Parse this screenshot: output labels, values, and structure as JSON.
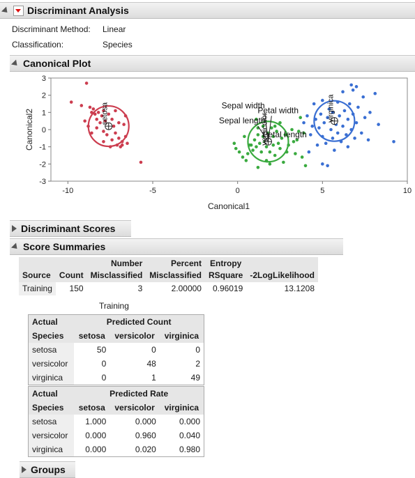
{
  "analysis": {
    "title": "Discriminant Analysis",
    "method_label": "Discriminant Method:",
    "method_value": "Linear",
    "classification_label": "Classification:",
    "classification_value": "Species"
  },
  "canonical_plot": {
    "title": "Canonical Plot",
    "chart_data": {
      "type": "scatter",
      "xlabel": "Canonical1",
      "ylabel": "Canonical2",
      "xlim": [
        -11,
        10
      ],
      "ylim": [
        -3,
        3
      ],
      "x_ticks": [
        "-10",
        "-5",
        "0",
        "5",
        "10"
      ],
      "y_ticks": [
        "3",
        "2",
        "1",
        "0",
        "-1",
        "-2",
        "-3"
      ],
      "groups": [
        {
          "name": "setosa",
          "color": "#cc3d4f",
          "center": [
            -7.6,
            0.2
          ],
          "points": [
            [
              -9.8,
              1.6
            ],
            [
              -9.2,
              1.4
            ],
            [
              -8.9,
              2.7
            ],
            [
              -8.7,
              1.3
            ],
            [
              -8.6,
              1.0
            ],
            [
              -8.5,
              1.2
            ],
            [
              -8.4,
              0.9
            ],
            [
              -8.3,
              0.6
            ],
            [
              -8.2,
              1.0
            ],
            [
              -8.1,
              0.4
            ],
            [
              -8.0,
              0.8
            ],
            [
              -7.9,
              1.1
            ],
            [
              -7.9,
              -0.1
            ],
            [
              -7.8,
              0.5
            ],
            [
              -7.7,
              0.3
            ],
            [
              -7.7,
              -0.3
            ],
            [
              -7.6,
              0.9
            ],
            [
              -7.5,
              0.1
            ],
            [
              -7.4,
              0.6
            ],
            [
              -7.4,
              -0.6
            ],
            [
              -7.3,
              0.2
            ],
            [
              -7.2,
              -0.2
            ],
            [
              -7.2,
              1.1
            ],
            [
              -7.1,
              -0.9
            ],
            [
              -7.0,
              -0.5
            ],
            [
              -7.0,
              0.4
            ],
            [
              -6.9,
              -1.0
            ],
            [
              -6.8,
              -0.7
            ],
            [
              -6.7,
              0.3
            ],
            [
              -6.6,
              -0.4
            ],
            [
              -6.6,
              0.8
            ],
            [
              -8.6,
              -0.2
            ],
            [
              -8.3,
              0.1
            ],
            [
              -7.9,
              -0.7
            ],
            [
              -7.5,
              -1.0
            ],
            [
              -6.8,
              -0.9
            ],
            [
              -6.5,
              -0.8
            ],
            [
              -5.7,
              -1.9
            ],
            [
              -9.0,
              0.5
            ],
            [
              -8.8,
              0.2
            ]
          ]
        },
        {
          "name": "versicolor",
          "color": "#3aaa3f",
          "center": [
            1.8,
            -0.7
          ],
          "points": [
            [
              -0.2,
              -0.8
            ],
            [
              -0.1,
              -1.1
            ],
            [
              0.1,
              -1.3
            ],
            [
              0.3,
              -1.6
            ],
            [
              0.5,
              -1.8
            ],
            [
              0.6,
              -1.4
            ],
            [
              0.8,
              -0.9
            ],
            [
              0.9,
              -1.2
            ],
            [
              1.0,
              -0.6
            ],
            [
              1.1,
              -1.0
            ],
            [
              1.1,
              0.6
            ],
            [
              1.2,
              -0.3
            ],
            [
              1.2,
              -2.2
            ],
            [
              1.3,
              -0.8
            ],
            [
              1.4,
              -1.3
            ],
            [
              1.5,
              -0.4
            ],
            [
              1.5,
              0.2
            ],
            [
              1.6,
              -0.7
            ],
            [
              1.7,
              -1.0
            ],
            [
              1.7,
              -1.8
            ],
            [
              1.8,
              -0.2
            ],
            [
              1.9,
              -0.6
            ],
            [
              1.9,
              -1.3
            ],
            [
              2.0,
              0.1
            ],
            [
              2.1,
              -0.9
            ],
            [
              2.1,
              -0.4
            ],
            [
              2.2,
              -1.5
            ],
            [
              2.3,
              -0.1
            ],
            [
              2.4,
              -0.8
            ],
            [
              2.5,
              -1.1
            ],
            [
              2.5,
              0.4
            ],
            [
              2.6,
              -0.5
            ],
            [
              2.7,
              -1.9
            ],
            [
              2.8,
              -0.3
            ],
            [
              3.0,
              -0.9
            ],
            [
              3.2,
              0.0
            ],
            [
              3.4,
              -1.4
            ],
            [
              3.5,
              -0.6
            ],
            [
              3.7,
              0.7
            ],
            [
              3.8,
              -1.6
            ],
            [
              3.9,
              -0.2
            ],
            [
              4.0,
              -2.1
            ],
            [
              0.4,
              -0.4
            ],
            [
              0.7,
              -0.9
            ],
            [
              2.9,
              -1.3
            ],
            [
              3.3,
              -0.7
            ],
            [
              1.9,
              -2.0
            ],
            [
              1.2,
              0.1
            ],
            [
              3.6,
              -0.1
            ],
            [
              2.2,
              0.2
            ]
          ]
        },
        {
          "name": "virginica",
          "color": "#3a6fd3",
          "center": [
            5.7,
            0.5
          ],
          "points": [
            [
              3.9,
              0.4
            ],
            [
              4.1,
              0.8
            ],
            [
              4.3,
              -0.3
            ],
            [
              4.4,
              0.2
            ],
            [
              4.5,
              1.5
            ],
            [
              4.6,
              0.6
            ],
            [
              4.7,
              -0.9
            ],
            [
              4.8,
              0.1
            ],
            [
              4.9,
              0.9
            ],
            [
              5.0,
              -0.4
            ],
            [
              5.0,
              1.7
            ],
            [
              5.1,
              0.4
            ],
            [
              5.2,
              -0.8
            ],
            [
              5.3,
              0.7
            ],
            [
              5.3,
              -2.1
            ],
            [
              5.4,
              1.2
            ],
            [
              5.5,
              0.0
            ],
            [
              5.6,
              -0.5
            ],
            [
              5.6,
              1.0
            ],
            [
              5.7,
              -1.2
            ],
            [
              5.8,
              0.3
            ],
            [
              5.9,
              -0.2
            ],
            [
              5.9,
              1.6
            ],
            [
              6.0,
              0.8
            ],
            [
              6.1,
              -0.7
            ],
            [
              6.2,
              0.2
            ],
            [
              6.2,
              2.2
            ],
            [
              6.3,
              1.1
            ],
            [
              6.4,
              -0.3
            ],
            [
              6.5,
              0.6
            ],
            [
              6.5,
              -1.0
            ],
            [
              6.6,
              1.5
            ],
            [
              6.7,
              0.0
            ],
            [
              6.8,
              2.3
            ],
            [
              6.8,
              0.9
            ],
            [
              6.9,
              -0.5
            ],
            [
              7.0,
              2.5
            ],
            [
              7.0,
              0.4
            ],
            [
              7.1,
              1.3
            ],
            [
              7.3,
              -0.2
            ],
            [
              7.4,
              1.9
            ],
            [
              7.5,
              0.7
            ],
            [
              7.7,
              -0.6
            ],
            [
              7.8,
              1.0
            ],
            [
              8.1,
              2.1
            ],
            [
              8.3,
              0.3
            ],
            [
              9.2,
              -0.7
            ],
            [
              5.0,
              -2.0
            ],
            [
              4.2,
              -1.3
            ],
            [
              6.7,
              2.6
            ]
          ]
        }
      ],
      "biplot_rays": [
        {
          "label": "Sepal width",
          "end": [
            1.6,
            1.0
          ]
        },
        {
          "label": "Petal width",
          "end": [
            2.0,
            0.8
          ]
        },
        {
          "label": "Sepal length",
          "end": [
            1.2,
            0.2
          ]
        },
        {
          "label": "Petal length",
          "end": [
            1.8,
            -0.2
          ]
        }
      ]
    }
  },
  "discriminant_scores": {
    "title": "Discriminant Scores"
  },
  "score_summaries": {
    "title": "Score Summaries",
    "summary": {
      "headers": [
        {
          "l1": "",
          "l2": "Source"
        },
        {
          "l1": "",
          "l2": "Count"
        },
        {
          "l1": "Number",
          "l2": "Misclassified"
        },
        {
          "l1": "Percent",
          "l2": "Misclassified"
        },
        {
          "l1": "Entropy",
          "l2": "RSquare"
        },
        {
          "l1": "",
          "l2": "-2LogLikelihood"
        }
      ],
      "row": [
        "Training",
        "150",
        "3",
        "2.00000",
        "0.96019",
        "13.1208"
      ]
    },
    "training_label": "Training",
    "count_table": {
      "actual": "Actual",
      "species": "Species",
      "predicted": "Predicted Count",
      "cols": [
        "setosa",
        "versicolor",
        "virginica"
      ],
      "rows": [
        {
          "name": "setosa",
          "vals": [
            "50",
            "0",
            "0"
          ]
        },
        {
          "name": "versicolor",
          "vals": [
            "0",
            "48",
            "2"
          ]
        },
        {
          "name": "virginica",
          "vals": [
            "0",
            "1",
            "49"
          ]
        }
      ]
    },
    "rate_table": {
      "actual": "Actual",
      "species": "Species",
      "predicted": "Predicted Rate",
      "cols": [
        "setosa",
        "versicolor",
        "virginica"
      ],
      "rows": [
        {
          "name": "setosa",
          "vals": [
            "1.000",
            "0.000",
            "0.000"
          ]
        },
        {
          "name": "versicolor",
          "vals": [
            "0.000",
            "0.960",
            "0.040"
          ]
        },
        {
          "name": "virginica",
          "vals": [
            "0.000",
            "0.020",
            "0.980"
          ]
        }
      ]
    }
  },
  "groups": {
    "title": "Groups"
  }
}
